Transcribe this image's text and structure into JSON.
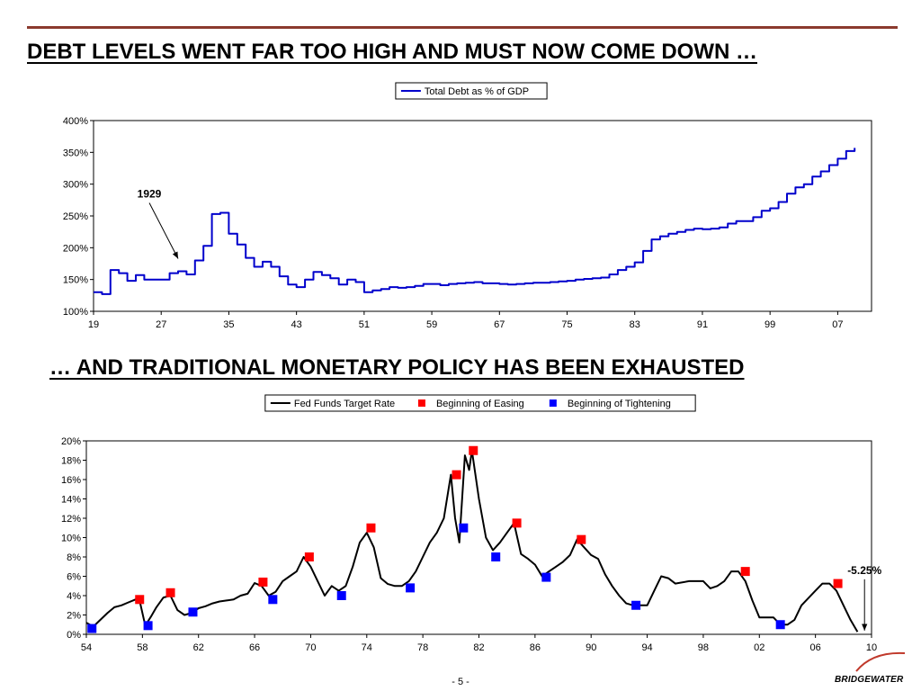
{
  "headline_top": "DEBT LEVELS WENT FAR TOO HIGH AND MUST NOW COME DOWN …",
  "headline_bottom": "… AND TRADITIONAL MONETARY POLICY HAS BEEN EXHAUSTED",
  "page_number": "- 5 -",
  "logo_text": "BRIDGEWATER",
  "colors": {
    "debt_line": "#0000cc",
    "easing": "#ff0000",
    "tightening": "#0000ff",
    "rule": "#8b3a2e"
  },
  "chart_data": [
    {
      "type": "line",
      "series": [
        {
          "name": "Total Debt as % of GDP",
          "x": [
            1919,
            1920,
            1921,
            1922,
            1923,
            1924,
            1925,
            1926,
            1927,
            1928,
            1929,
            1930,
            1931,
            1932,
            1933,
            1934,
            1935,
            1936,
            1937,
            1938,
            1939,
            1940,
            1941,
            1942,
            1943,
            1944,
            1945,
            1946,
            1947,
            1948,
            1949,
            1950,
            1951,
            1952,
            1953,
            1954,
            1955,
            1956,
            1957,
            1958,
            1959,
            1960,
            1961,
            1962,
            1963,
            1964,
            1965,
            1966,
            1967,
            1968,
            1969,
            1970,
            1971,
            1972,
            1973,
            1974,
            1975,
            1976,
            1977,
            1978,
            1979,
            1980,
            1981,
            1982,
            1983,
            1984,
            1985,
            1986,
            1987,
            1988,
            1989,
            1990,
            1991,
            1992,
            1993,
            1994,
            1995,
            1996,
            1997,
            1998,
            1999,
            2000,
            2001,
            2002,
            2003,
            2004,
            2005,
            2006,
            2007,
            2008,
            2009
          ],
          "values": [
            130,
            127,
            165,
            160,
            148,
            157,
            150,
            150,
            150,
            160,
            163,
            158,
            180,
            203,
            253,
            255,
            222,
            205,
            184,
            170,
            178,
            170,
            155,
            142,
            138,
            150,
            162,
            157,
            152,
            142,
            150,
            146,
            130,
            133,
            135,
            138,
            137,
            138,
            140,
            143,
            143,
            141,
            143,
            144,
            145,
            146,
            144,
            144,
            143,
            142,
            143,
            144,
            145,
            145,
            146,
            147,
            148,
            150,
            151,
            152,
            153,
            158,
            165,
            170,
            177,
            195,
            213,
            218,
            222,
            225,
            228,
            230,
            229,
            230,
            232,
            238,
            242,
            242,
            248,
            258,
            262,
            272,
            285,
            295,
            300,
            312,
            320,
            330,
            340,
            352,
            357
          ]
        }
      ],
      "annotations": [
        {
          "text": "1929",
          "x": 1929,
          "y": 180
        }
      ],
      "xticks": [
        1919,
        1927,
        1935,
        1943,
        1951,
        1959,
        1967,
        1975,
        1983,
        1991,
        1999,
        2007
      ],
      "xtick_labels": [
        "19",
        "27",
        "35",
        "43",
        "51",
        "59",
        "67",
        "75",
        "83",
        "91",
        "99",
        "07"
      ],
      "xlim": [
        1919,
        2011
      ],
      "ylim": [
        100,
        400
      ],
      "yticks": [
        100,
        150,
        200,
        250,
        300,
        350,
        400
      ],
      "ytick_labels": [
        "100%",
        "150%",
        "200%",
        "250%",
        "300%",
        "350%",
        "400%"
      ],
      "legend_position": "top-center",
      "grid": false
    },
    {
      "type": "line",
      "series": [
        {
          "name": "Fed Funds Target Rate",
          "x": [
            1954,
            1954.5,
            1955,
            1955.5,
            1956,
            1956.5,
            1957,
            1957.5,
            1957.8,
            1958.2,
            1958.6,
            1959,
            1959.5,
            1960,
            1960.5,
            1961,
            1961.5,
            1962,
            1962.5,
            1963,
            1963.5,
            1964,
            1964.5,
            1965,
            1965.5,
            1966,
            1966.5,
            1967,
            1967.5,
            1968,
            1968.5,
            1969,
            1969.5,
            1970,
            1970.5,
            1971,
            1971.5,
            1972,
            1972.5,
            1973,
            1973.5,
            1974,
            1974.5,
            1975,
            1975.5,
            1976,
            1976.5,
            1977,
            1977.5,
            1978,
            1978.5,
            1979,
            1979.5,
            1980,
            1980.3,
            1980.6,
            1981,
            1981.3,
            1981.5,
            1982,
            1982.5,
            1983,
            1983.5,
            1984,
            1984.5,
            1985,
            1985.5,
            1986,
            1986.5,
            1987,
            1987.5,
            1988,
            1988.5,
            1989,
            1989.5,
            1990,
            1990.5,
            1991,
            1991.5,
            1992,
            1992.5,
            1993,
            1994,
            1994.5,
            1995,
            1995.5,
            1996,
            1997,
            1998,
            1998.5,
            1999,
            1999.5,
            2000,
            2000.5,
            2001,
            2001.5,
            2002,
            2003,
            2003.5,
            2004,
            2004.5,
            2005,
            2006,
            2006.5,
            2007,
            2007.5,
            2008,
            2008.5,
            2009
          ],
          "values": [
            1.2,
            0.8,
            1.5,
            2.2,
            2.8,
            3.0,
            3.3,
            3.6,
            3.5,
            0.9,
            1.8,
            2.8,
            3.8,
            4.0,
            2.5,
            2.0,
            2.2,
            2.7,
            2.9,
            3.2,
            3.4,
            3.5,
            3.6,
            4.0,
            4.2,
            5.3,
            5.0,
            4.0,
            4.4,
            5.5,
            6.0,
            6.5,
            8.0,
            7.0,
            5.5,
            4.0,
            5.0,
            4.5,
            5.0,
            7.0,
            9.5,
            10.5,
            9.0,
            5.8,
            5.2,
            5.0,
            5.0,
            5.5,
            6.5,
            8.0,
            9.5,
            10.5,
            12.0,
            16.5,
            12.0,
            9.5,
            18.5,
            17.0,
            19.0,
            14.0,
            10.0,
            8.7,
            9.5,
            10.5,
            11.5,
            8.3,
            7.8,
            7.2,
            6.0,
            6.5,
            7.0,
            7.5,
            8.2,
            9.8,
            9.0,
            8.2,
            7.8,
            6.2,
            5.0,
            4.0,
            3.2,
            3.0,
            3.0,
            4.5,
            6.0,
            5.8,
            5.25,
            5.5,
            5.5,
            4.75,
            5.0,
            5.5,
            6.5,
            6.5,
            5.5,
            3.5,
            1.75,
            1.75,
            1.0,
            1.0,
            1.5,
            3.0,
            4.5,
            5.25,
            5.25,
            4.5,
            3.0,
            1.5,
            0.25
          ]
        },
        {
          "name": "Beginning of Easing",
          "x": [
            1957.8,
            1960.0,
            1966.6,
            1969.9,
            1974.3,
            1980.4,
            1981.6,
            1984.7,
            1989.3,
            2001.0,
            2007.6
          ],
          "values": [
            3.6,
            4.3,
            5.4,
            8.0,
            11.0,
            16.5,
            19.0,
            11.5,
            9.8,
            6.5,
            5.25
          ]
        },
        {
          "name": "Beginning of Tightening",
          "x": [
            1954.4,
            1958.4,
            1961.6,
            1967.3,
            1972.2,
            1977.1,
            1980.9,
            1983.2,
            1986.8,
            1993.2,
            2003.5
          ],
          "values": [
            0.6,
            0.9,
            2.3,
            3.6,
            4.0,
            4.8,
            11.0,
            8.0,
            5.9,
            3.0,
            1.0
          ]
        }
      ],
      "annotations": [
        {
          "text": "-5.25%",
          "x": 2009.5,
          "y": 0.2
        }
      ],
      "xticks": [
        1954,
        1958,
        1962,
        1966,
        1970,
        1974,
        1978,
        1982,
        1986,
        1990,
        1994,
        1998,
        2002,
        2006,
        2010
      ],
      "xtick_labels": [
        "54",
        "58",
        "62",
        "66",
        "70",
        "74",
        "78",
        "82",
        "86",
        "90",
        "94",
        "98",
        "02",
        "06",
        "10"
      ],
      "xlim": [
        1954,
        2010
      ],
      "ylim": [
        0,
        20
      ],
      "yticks": [
        0,
        2,
        4,
        6,
        8,
        10,
        12,
        14,
        16,
        18,
        20
      ],
      "ytick_labels": [
        "0%",
        "2%",
        "4%",
        "6%",
        "8%",
        "10%",
        "12%",
        "14%",
        "16%",
        "18%",
        "20%"
      ],
      "legend_position": "top-center",
      "grid": false
    }
  ]
}
